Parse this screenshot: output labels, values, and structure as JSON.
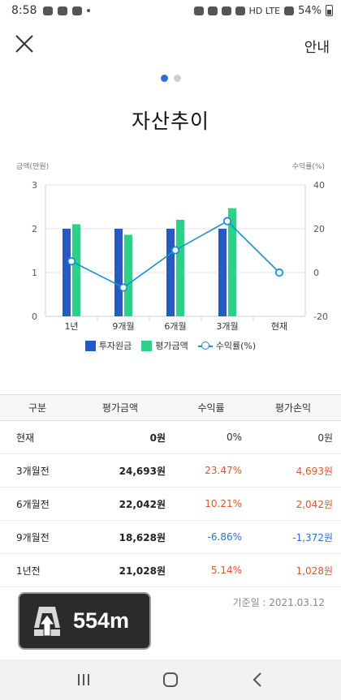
{
  "status_bar": {
    "time": "8:58",
    "network": "HD LTE",
    "battery": "54%"
  },
  "header": {
    "close_icon": "close-icon",
    "guide_label": "안내"
  },
  "pager": {
    "count": 2,
    "active": 0
  },
  "title": "자산추이",
  "chart_data": {
    "type": "bar",
    "categories": [
      "1년",
      "9개월",
      "6개월",
      "3개월",
      "현재"
    ],
    "left_axis_label": "금액(만원)",
    "right_axis_label": "수익률(%)",
    "left_ylim": [
      0,
      3
    ],
    "right_ylim": [
      -20,
      40
    ],
    "left_ticks": [
      "0",
      "1",
      "2",
      "3"
    ],
    "right_ticks": [
      "-20",
      "0",
      "20",
      "40"
    ],
    "series": [
      {
        "name": "투자원금",
        "kind": "bar",
        "axis": "left",
        "color": "#2559c4",
        "values": [
          2.0,
          2.0,
          2.0,
          2.0,
          null
        ]
      },
      {
        "name": "평가금액",
        "kind": "bar",
        "axis": "left",
        "color": "#2fd08a",
        "values": [
          2.1028,
          1.8628,
          2.2042,
          2.4693,
          null
        ]
      },
      {
        "name": "수익률(%)",
        "kind": "line",
        "axis": "right",
        "color": "#1e8fd0",
        "values": [
          5.14,
          -6.86,
          10.21,
          23.47,
          0
        ]
      }
    ],
    "grid": "horizontal",
    "legend_position": "bottom"
  },
  "table": {
    "headers": [
      "구분",
      "평가금액",
      "수익률",
      "평가손익"
    ],
    "rows": [
      {
        "label": "현재",
        "amount": "0원",
        "rate": "0%",
        "pnl": "0원",
        "tone": "zero"
      },
      {
        "label": "3개월전",
        "amount": "24,693원",
        "rate": "23.47%",
        "pnl": "4,693원",
        "tone": "pos"
      },
      {
        "label": "6개월전",
        "amount": "22,042원",
        "rate": "10.21%",
        "pnl": "2,042원",
        "tone": "pos"
      },
      {
        "label": "9개월전",
        "amount": "18,628원",
        "rate": "-6.86%",
        "pnl": "-1,372원",
        "tone": "neg"
      },
      {
        "label": "1년전",
        "amount": "21,028원",
        "rate": "5.14%",
        "pnl": "1,028원",
        "tone": "pos"
      }
    ]
  },
  "base_date": "기준일 : 2021.03.12",
  "nav_overlay": {
    "distance": "554m",
    "icon": "lane-guidance-icon"
  },
  "system_nav": {
    "recent": "recent-apps-icon",
    "home": "home-icon",
    "back": "back-icon"
  },
  "colors": {
    "accent": "#2f6fd0",
    "positive": "#e2552c",
    "negative": "#2f6fd0"
  }
}
